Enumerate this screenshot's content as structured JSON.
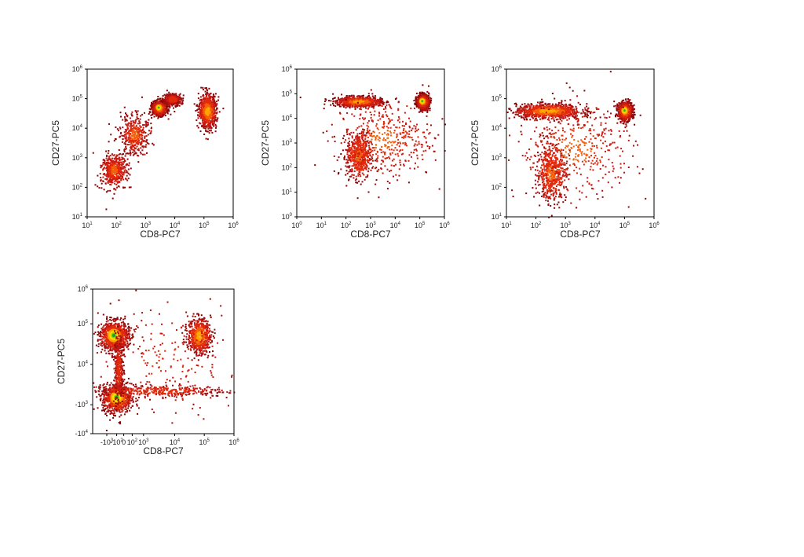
{
  "chart_data": [
    {
      "type": "scatter",
      "subtype": "density-dot-plot",
      "scale": "log",
      "xlabel": "CD8-PC7",
      "ylabel": "CD27-PC5",
      "xticks": [
        {
          "b": "10",
          "e": "1"
        },
        {
          "b": "10",
          "e": "2"
        },
        {
          "b": "10",
          "e": "3"
        },
        {
          "b": "10",
          "e": "4"
        },
        {
          "b": "10",
          "e": "5"
        },
        {
          "b": "10",
          "e": "6"
        }
      ],
      "yticks": [
        {
          "b": "10",
          "e": "1"
        },
        {
          "b": "10",
          "e": "2"
        },
        {
          "b": "10",
          "e": "3"
        },
        {
          "b": "10",
          "e": "4"
        },
        {
          "b": "10",
          "e": "5"
        },
        {
          "b": "10",
          "e": "6"
        }
      ],
      "xlim": [
        1,
        6
      ],
      "ylim": [
        1,
        6
      ],
      "populations": [
        {
          "x": 1.9,
          "y": 2.6,
          "sx": 0.22,
          "sy": 0.28,
          "w": 0.55
        },
        {
          "x": 2.6,
          "y": 3.8,
          "sx": 0.25,
          "sy": 0.35,
          "w": 0.45
        },
        {
          "x": 3.45,
          "y": 4.7,
          "sx": 0.12,
          "sy": 0.12,
          "w": 1.0,
          "hot": true
        },
        {
          "x": 3.9,
          "y": 5.0,
          "sx": 0.15,
          "sy": 0.1,
          "w": 0.4
        },
        {
          "x": 5.1,
          "y": 4.6,
          "sx": 0.15,
          "sy": 0.28,
          "w": 0.85
        }
      ]
    },
    {
      "type": "scatter",
      "subtype": "density-dot-plot",
      "scale": "log",
      "xlabel": "CD8-PC7",
      "ylabel": "CD27-PC5",
      "xticks": [
        {
          "b": "10",
          "e": "0"
        },
        {
          "b": "10",
          "e": "1"
        },
        {
          "b": "10",
          "e": "2"
        },
        {
          "b": "10",
          "e": "3"
        },
        {
          "b": "10",
          "e": "4"
        },
        {
          "b": "10",
          "e": "5"
        },
        {
          "b": "10",
          "e": "6"
        }
      ],
      "yticks": [
        {
          "b": "10",
          "e": "0"
        },
        {
          "b": "10",
          "e": "1"
        },
        {
          "b": "10",
          "e": "2"
        },
        {
          "b": "10",
          "e": "3"
        },
        {
          "b": "10",
          "e": "4"
        },
        {
          "b": "10",
          "e": "5"
        },
        {
          "b": "10",
          "e": "6"
        }
      ],
      "xlim": [
        0,
        6
      ],
      "ylim": [
        0,
        6
      ],
      "populations": [
        {
          "x": 2.5,
          "y": 4.7,
          "sx": 0.45,
          "sy": 0.1,
          "w": 1.0
        },
        {
          "x": 5.1,
          "y": 4.7,
          "sx": 0.12,
          "sy": 0.15,
          "w": 0.9,
          "hot": true
        },
        {
          "x": 2.5,
          "y": 2.5,
          "sx": 0.25,
          "sy": 0.45,
          "w": 0.6
        },
        {
          "x": 3.5,
          "y": 3.2,
          "sx": 1.0,
          "sy": 0.8,
          "w": 0.5
        }
      ]
    },
    {
      "type": "scatter",
      "subtype": "density-dot-plot",
      "scale": "log",
      "xlabel": "CD8-PC7",
      "ylabel": "CD27-PC5",
      "xticks": [
        {
          "b": "10",
          "e": "1"
        },
        {
          "b": "10",
          "e": "2"
        },
        {
          "b": "10",
          "e": "3"
        },
        {
          "b": "10",
          "e": "4"
        },
        {
          "b": "10",
          "e": "5"
        },
        {
          "b": "10",
          "e": "6"
        }
      ],
      "yticks": [
        {
          "b": "10",
          "e": "1"
        },
        {
          "b": "10",
          "e": "2"
        },
        {
          "b": "10",
          "e": "3"
        },
        {
          "b": "10",
          "e": "4"
        },
        {
          "b": "10",
          "e": "5"
        },
        {
          "b": "10",
          "e": "6"
        }
      ],
      "xlim": [
        1,
        6
      ],
      "ylim": [
        1,
        6
      ],
      "populations": [
        {
          "x": 2.4,
          "y": 4.6,
          "sx": 0.55,
          "sy": 0.12,
          "w": 1.0
        },
        {
          "x": 5.0,
          "y": 4.6,
          "sx": 0.12,
          "sy": 0.15,
          "w": 0.9,
          "hot": true
        },
        {
          "x": 2.5,
          "y": 2.5,
          "sx": 0.25,
          "sy": 0.45,
          "w": 0.6
        },
        {
          "x": 3.3,
          "y": 3.3,
          "sx": 1.0,
          "sy": 0.8,
          "w": 0.5
        }
      ]
    },
    {
      "type": "scatter",
      "subtype": "density-dot-plot",
      "scale": "biexponential",
      "xlabel": "CD8-PC7",
      "ylabel": "CD27-PC5",
      "xticks": [
        {
          "b": "-10",
          "e": "3",
          "pos": 0.1
        },
        {
          "b": "-10",
          "e": "2",
          "pos": 0.17
        },
        {
          "b": "0",
          "e": "",
          "pos": 0.22
        },
        {
          "b": "10",
          "e": "2",
          "pos": 0.28
        },
        {
          "b": "10",
          "e": "3",
          "pos": 0.36
        },
        {
          "b": "10",
          "e": "4",
          "pos": 0.58
        },
        {
          "b": "10",
          "e": "5",
          "pos": 0.79
        },
        {
          "b": "10",
          "e": "6",
          "pos": 1.0
        }
      ],
      "yticks": [
        {
          "b": "10",
          "e": "6",
          "pos": 1.0
        },
        {
          "b": "10",
          "e": "5",
          "pos": 0.76
        },
        {
          "b": "10",
          "e": "4",
          "pos": 0.48
        },
        {
          "b": "-10",
          "e": "3",
          "pos": 0.2
        },
        {
          "b": "-10",
          "e": "4",
          "pos": 0.0
        }
      ],
      "xlim": [
        0,
        1
      ],
      "ylim": [
        0,
        1
      ],
      "populations": [
        {
          "x": 0.15,
          "y": 0.68,
          "sx": 0.05,
          "sy": 0.05,
          "w": 1.0,
          "hot": true
        },
        {
          "x": 0.75,
          "y": 0.68,
          "sx": 0.04,
          "sy": 0.06,
          "w": 0.7
        },
        {
          "x": 0.17,
          "y": 0.25,
          "sx": 0.05,
          "sy": 0.05,
          "w": 0.9,
          "hot": true
        },
        {
          "x": 0.45,
          "y": 0.3,
          "sx": 0.25,
          "sy": 0.02,
          "w": 0.4
        },
        {
          "x": 0.18,
          "y": 0.45,
          "sx": 0.015,
          "sy": 0.12,
          "w": 0.4
        },
        {
          "x": 0.5,
          "y": 0.5,
          "sx": 0.3,
          "sy": 0.2,
          "w": 0.25
        }
      ]
    }
  ]
}
